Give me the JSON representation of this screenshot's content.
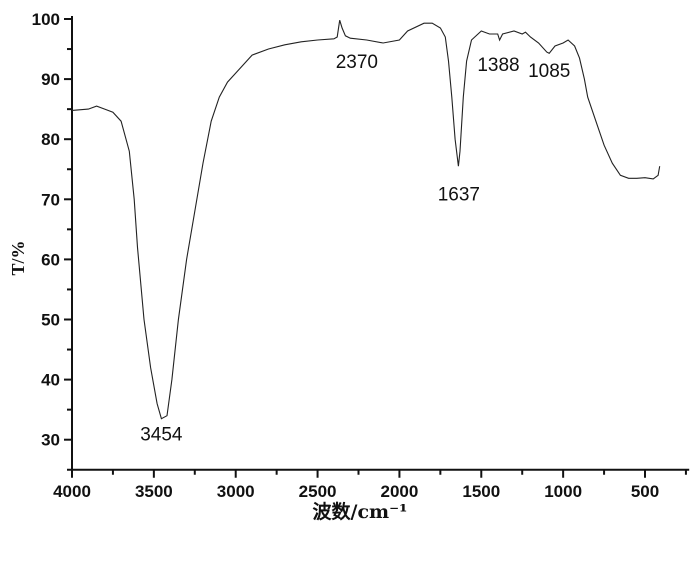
{
  "chart_data": {
    "type": "line",
    "xlabel": "波数/cm⁻¹",
    "ylabel": "T/%",
    "xlim": [
      4000,
      230
    ],
    "ylim": [
      25,
      100
    ],
    "x_reversed": true,
    "grid": false,
    "line_color": "#222222",
    "x_ticks": [
      4000,
      3500,
      3000,
      2500,
      2000,
      1500,
      1000,
      500
    ],
    "y_ticks": [
      30,
      40,
      50,
      60,
      70,
      80,
      90,
      100
    ],
    "series": [
      {
        "x": [
          4000,
          3900,
          3850,
          3800,
          3750,
          3700,
          3650,
          3620,
          3600,
          3560,
          3520,
          3480,
          3454,
          3420,
          3390,
          3350,
          3300,
          3250,
          3200,
          3150,
          3100,
          3050,
          3000,
          2950,
          2900,
          2800,
          2700,
          2600,
          2500,
          2400,
          2380,
          2365,
          2350,
          2330,
          2300,
          2200,
          2100,
          2000,
          1950,
          1850,
          1800,
          1750,
          1720,
          1700,
          1680,
          1660,
          1640,
          1630,
          1610,
          1590,
          1560,
          1500,
          1450,
          1400,
          1388,
          1370,
          1300,
          1250,
          1230,
          1200,
          1150,
          1100,
          1085,
          1050,
          1000,
          970,
          930,
          900,
          870,
          850,
          800,
          750,
          700,
          650,
          600,
          550,
          500,
          450,
          420,
          410
        ],
        "y": [
          84.8,
          85,
          85.5,
          85,
          84.5,
          83,
          78,
          70,
          62,
          50,
          42,
          36,
          33.5,
          34,
          40,
          50,
          60,
          68,
          76,
          83,
          87,
          89.5,
          91,
          92.5,
          94,
          95,
          95.7,
          96.2,
          96.5,
          96.7,
          97,
          99.8,
          98.5,
          97.2,
          96.8,
          96.5,
          96,
          96.5,
          98,
          99.3,
          99.3,
          98.5,
          97,
          93,
          87,
          80,
          75.5,
          78,
          87,
          93,
          96.5,
          98,
          97.5,
          97.5,
          96.5,
          97.5,
          98,
          97.5,
          97.8,
          97,
          96,
          94.5,
          94.3,
          95.5,
          96,
          96.5,
          95.5,
          93.5,
          90,
          87,
          83,
          79,
          76,
          74,
          73.5,
          73.5,
          73.6,
          73.4,
          74,
          75.5
        ]
      }
    ],
    "annotations": [
      {
        "text": "3454",
        "x": 3454,
        "y": 31
      },
      {
        "text": "2370",
        "x": 2260,
        "y": 93
      },
      {
        "text": "1637",
        "x": 1637,
        "y": 71
      },
      {
        "text": "1388",
        "x": 1395,
        "y": 92.5
      },
      {
        "text": "1085",
        "x": 1085,
        "y": 91.5
      }
    ]
  }
}
